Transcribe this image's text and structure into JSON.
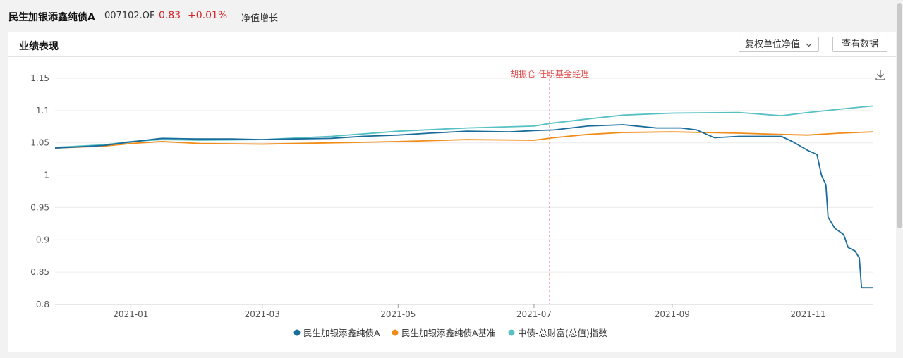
{
  "header": {
    "fund_name": "民生加银添鑫纯债A",
    "fund_code": "007102.OF",
    "nav": "0.83",
    "change": "+0.01%",
    "metric": "净值增长"
  },
  "panel": {
    "title": "业绩表现",
    "dropdown_label": "复权单位净值",
    "view_button": "查看数据"
  },
  "colors": {
    "series1": "#1a6d9b",
    "series2": "#f28c19",
    "series3": "#56c0c3",
    "annotation": "#e05050",
    "price_red": "#d4282d"
  },
  "chart_data": {
    "type": "line",
    "x_axis": {
      "type": "date",
      "min": "2020-11-28",
      "max": "2021-11-30",
      "ticks": [
        "2021-01",
        "2021-03",
        "2021-05",
        "2021-07",
        "2021-09",
        "2021-11"
      ]
    },
    "y_axis": {
      "min": 0.8,
      "max": 1.15,
      "ticks": [
        "0.8",
        "0.85",
        "0.9",
        "0.95",
        "1",
        "1.05",
        "1.1",
        "1.15"
      ]
    },
    "grid": true,
    "legend_position": "bottom",
    "annotation": {
      "date": "2021-07-08",
      "label": "胡振仓 任职基金经理"
    },
    "series": [
      {
        "name": "民生加银添鑫纯债A",
        "points": [
          [
            "2020-11-28",
            1.042
          ],
          [
            "2020-12-10",
            1.044
          ],
          [
            "2020-12-20",
            1.046
          ],
          [
            "2020-12-31",
            1.051
          ],
          [
            "2021-01-15",
            1.057
          ],
          [
            "2021-01-30",
            1.056
          ],
          [
            "2021-02-15",
            1.056
          ],
          [
            "2021-03-01",
            1.055
          ],
          [
            "2021-03-15",
            1.056
          ],
          [
            "2021-04-01",
            1.057
          ],
          [
            "2021-04-15",
            1.06
          ],
          [
            "2021-05-01",
            1.062
          ],
          [
            "2021-05-15",
            1.065
          ],
          [
            "2021-06-01",
            1.068
          ],
          [
            "2021-06-20",
            1.067
          ],
          [
            "2021-07-01",
            1.069
          ],
          [
            "2021-07-10",
            1.07
          ],
          [
            "2021-07-25",
            1.076
          ],
          [
            "2021-08-10",
            1.078
          ],
          [
            "2021-08-25",
            1.073
          ],
          [
            "2021-09-05",
            1.073
          ],
          [
            "2021-09-12",
            1.07
          ],
          [
            "2021-09-20",
            1.058
          ],
          [
            "2021-10-01",
            1.06
          ],
          [
            "2021-10-10",
            1.06
          ],
          [
            "2021-10-20",
            1.06
          ],
          [
            "2021-10-25",
            1.052
          ],
          [
            "2021-11-01",
            1.038
          ],
          [
            "2021-11-05",
            1.032
          ],
          [
            "2021-11-07",
            1.0
          ],
          [
            "2021-11-09",
            0.985
          ],
          [
            "2021-11-10",
            0.935
          ],
          [
            "2021-11-13",
            0.918
          ],
          [
            "2021-11-17",
            0.908
          ],
          [
            "2021-11-19",
            0.888
          ],
          [
            "2021-11-22",
            0.883
          ],
          [
            "2021-11-24",
            0.872
          ],
          [
            "2021-11-25",
            0.826
          ],
          [
            "2021-11-30",
            0.826
          ]
        ]
      },
      {
        "name": "民生加银添鑫纯债A基准",
        "points": [
          [
            "2020-11-28",
            1.042
          ],
          [
            "2020-12-20",
            1.045
          ],
          [
            "2021-01-01",
            1.049
          ],
          [
            "2021-01-15",
            1.052
          ],
          [
            "2021-02-01",
            1.049
          ],
          [
            "2021-03-01",
            1.048
          ],
          [
            "2021-04-01",
            1.05
          ],
          [
            "2021-05-01",
            1.052
          ],
          [
            "2021-06-01",
            1.055
          ],
          [
            "2021-07-01",
            1.054
          ],
          [
            "2021-07-10",
            1.058
          ],
          [
            "2021-07-25",
            1.063
          ],
          [
            "2021-08-10",
            1.066
          ],
          [
            "2021-09-01",
            1.067
          ],
          [
            "2021-10-01",
            1.065
          ],
          [
            "2021-10-20",
            1.063
          ],
          [
            "2021-11-01",
            1.062
          ],
          [
            "2021-11-15",
            1.065
          ],
          [
            "2021-11-30",
            1.067
          ]
        ]
      },
      {
        "name": "中债-总财富(总值)指数",
        "points": [
          [
            "2020-11-28",
            1.043
          ],
          [
            "2020-12-20",
            1.047
          ],
          [
            "2021-01-01",
            1.052
          ],
          [
            "2021-01-15",
            1.055
          ],
          [
            "2021-02-01",
            1.054
          ],
          [
            "2021-03-01",
            1.055
          ],
          [
            "2021-04-01",
            1.06
          ],
          [
            "2021-05-01",
            1.068
          ],
          [
            "2021-06-01",
            1.073
          ],
          [
            "2021-07-01",
            1.076
          ],
          [
            "2021-07-08",
            1.08
          ],
          [
            "2021-07-25",
            1.087
          ],
          [
            "2021-08-10",
            1.093
          ],
          [
            "2021-09-01",
            1.096
          ],
          [
            "2021-10-01",
            1.097
          ],
          [
            "2021-10-20",
            1.092
          ],
          [
            "2021-11-01",
            1.097
          ],
          [
            "2021-11-15",
            1.102
          ],
          [
            "2021-11-30",
            1.107
          ]
        ]
      }
    ]
  }
}
